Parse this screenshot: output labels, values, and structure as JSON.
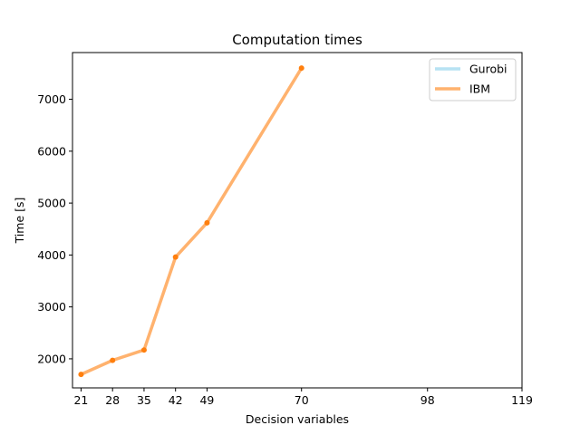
{
  "chart_data": {
    "type": "line",
    "title": "Computation times",
    "xlabel": "Decision variables",
    "ylabel": "Time [s]",
    "x_ticks": [
      21,
      28,
      35,
      42,
      49,
      70,
      98,
      119
    ],
    "y_ticks": [
      2000,
      3000,
      4000,
      5000,
      6000,
      7000
    ],
    "xlim": [
      19.1,
      119
    ],
    "ylim": [
      1440,
      7900
    ],
    "grid": false,
    "legend_position": "top-right",
    "series": [
      {
        "name": "Gurobi",
        "color": "#87ceeb",
        "x": [],
        "y": []
      },
      {
        "name": "IBM",
        "color": "#ff7f0e",
        "x": [
          21,
          28,
          35,
          42,
          49,
          70
        ],
        "y": [
          1700,
          1970,
          2170,
          3960,
          4620,
          7600
        ]
      }
    ]
  }
}
